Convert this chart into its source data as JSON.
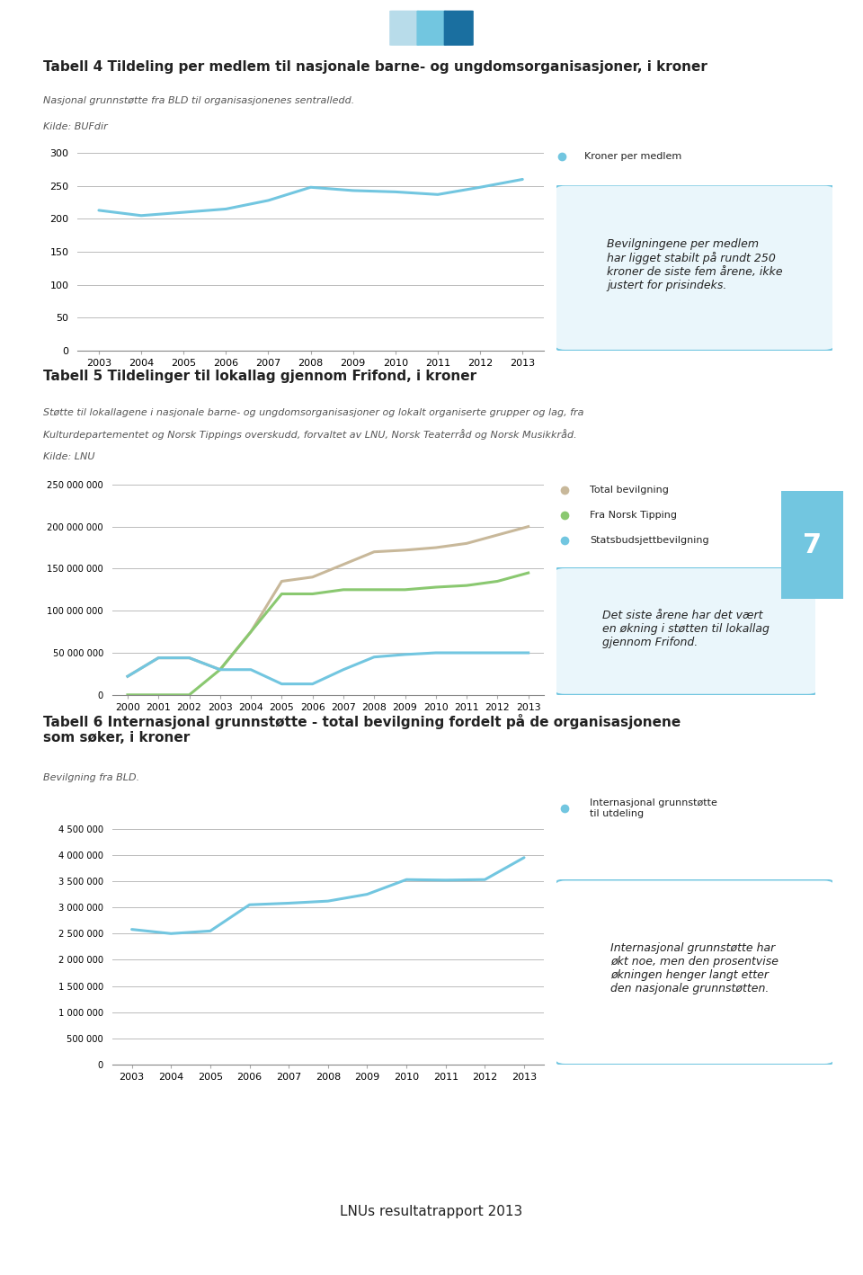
{
  "chart1": {
    "title": "Tabell 4 Tildeling per medlem til nasjonale barne- og ungdomsorganisasjoner, i kroner",
    "subtitle1": "Nasjonal grunnstøtte fra BLD til organisasjonenes sentralledd.",
    "subtitle2": "Kilde: BUFdir",
    "years": [
      2003,
      2004,
      2005,
      2006,
      2007,
      2008,
      2009,
      2010,
      2011,
      2012,
      2013
    ],
    "kroner_per_medlem": [
      213,
      205,
      210,
      215,
      228,
      248,
      243,
      241,
      237,
      248,
      260
    ],
    "line_color": "#72c6e0",
    "legend_label": "Kroner per medlem",
    "ylim": [
      0,
      300
    ],
    "yticks": [
      0,
      50,
      100,
      150,
      200,
      250,
      300
    ],
    "annotation_box_text": "Bevilgningene per medlem\nhar ligget stabilt på rundt 250\nkroner de siste fem årene, ikke\njustert for prisindeks.",
    "annotation_box_color": "#eaf6fb",
    "annotation_box_border": "#72c6e0"
  },
  "chart2": {
    "title": "Tabell 5 Tildelinger til lokallag gjennom Frifond, i kroner",
    "subtitle1": "Støtte til lokallagene i nasjonale barne- og ungdomsorganisasjoner og lokalt organiserte grupper og lag, fra",
    "subtitle2": "Kulturdepartementet og Norsk Tippings overskudd, forvaltet av LNU, Norsk Teaterråd og Norsk Musikkråd.",
    "subtitle3": "Kilde: LNU",
    "years": [
      2000,
      2001,
      2002,
      2003,
      2004,
      2005,
      2006,
      2007,
      2008,
      2009,
      2010,
      2011,
      2012,
      2013
    ],
    "total_bevilgning": [
      22000000,
      44000000,
      44000000,
      30000000,
      75000000,
      135000000,
      140000000,
      155000000,
      170000000,
      172000000,
      175000000,
      180000000,
      190000000,
      200000000
    ],
    "fra_norsk_tipping": [
      0,
      0,
      0,
      30000000,
      75000000,
      120000000,
      120000000,
      125000000,
      125000000,
      125000000,
      128000000,
      130000000,
      135000000,
      145000000
    ],
    "statsbudsjett": [
      22000000,
      44000000,
      44000000,
      30000000,
      30000000,
      13000000,
      13000000,
      30000000,
      45000000,
      48000000,
      50000000,
      50000000,
      50000000,
      50000000
    ],
    "total_color": "#c8b89a",
    "tipping_color": "#8ac870",
    "stats_color": "#72c6e0",
    "ylim": [
      0,
      250000000
    ],
    "yticks": [
      0,
      50000000,
      100000000,
      150000000,
      200000000,
      250000000
    ],
    "annotation_box_text": "Det siste årene har det vært\nen økning i støtten til lokallag\ngjennom Frifond.",
    "annotation_box_color": "#eaf6fb",
    "annotation_box_border": "#72c6e0",
    "badge_color": "#72c6e0",
    "badge_text": "7"
  },
  "chart3": {
    "title": "Tabell 6 Internasjonal grunnstøtte - total bevilgning fordelt på de organisasjonene\nsom søker, i kroner",
    "subtitle1": "Bevilgning fra BLD.",
    "years": [
      2003,
      2004,
      2005,
      2006,
      2007,
      2008,
      2009,
      2010,
      2011,
      2012,
      2013
    ],
    "internasjonal": [
      2580000,
      2500000,
      2550000,
      3050000,
      3080000,
      3120000,
      3250000,
      3530000,
      3520000,
      3530000,
      3950000
    ],
    "line_color": "#72c6e0",
    "legend_label": "Internasjonal grunnstøtte\ntil utdeling",
    "ylim": [
      0,
      4500000
    ],
    "yticks": [
      0,
      500000,
      1000000,
      1500000,
      2000000,
      2500000,
      3000000,
      3500000,
      4000000,
      4500000
    ],
    "annotation_box_text": "Internasjonal grunnstøtte har\nøkt noe, men den prosentvise\nøkningen henger langt etter\nden nasjonale grunnstøtten.",
    "annotation_box_color": "#ffffff",
    "annotation_box_border": "#72c6e0"
  },
  "header_colors": [
    "#b8dcea",
    "#72c6e0",
    "#1a6fa0"
  ],
  "footer_text": "LNUs resultatrapport 2013",
  "background_color": "#ffffff",
  "text_color": "#222222",
  "subtext_color": "#555555",
  "grid_color": "#bbbbbb"
}
